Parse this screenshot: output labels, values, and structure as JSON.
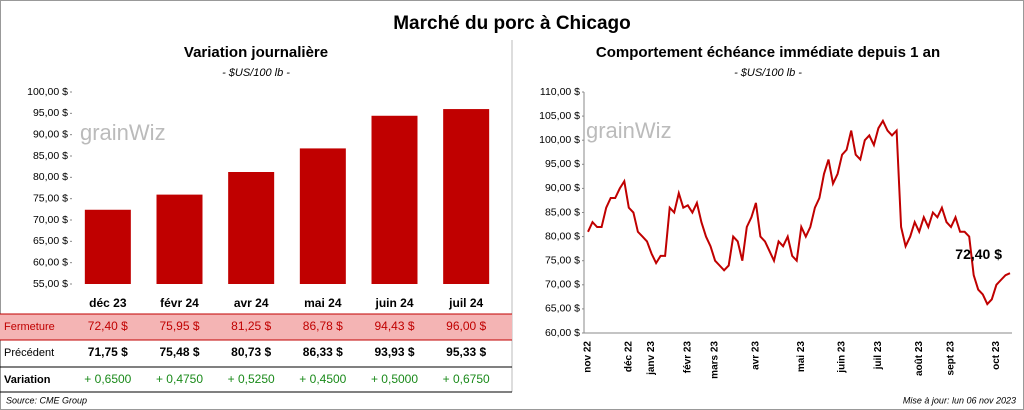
{
  "title": "Marché du porc à Chicago",
  "watermark": "grainWiz",
  "chart_data": [
    {
      "type": "bar",
      "title": "Variation journalière",
      "subtitle": "- $US/100 lb -",
      "categories": [
        "déc 23",
        "févr 24",
        "avr 24",
        "mai 24",
        "juin 24",
        "juil 24"
      ],
      "values": [
        72.4,
        75.95,
        81.25,
        86.78,
        94.43,
        96.0
      ],
      "color": "#c00000",
      "ylim": [
        55,
        100
      ],
      "yticks": [
        {
          "value": 55,
          "label": "55,00 $"
        },
        {
          "value": 60,
          "label": "60,00 $"
        },
        {
          "value": 65,
          "label": "65,00 $"
        },
        {
          "value": 70,
          "label": "70,00 $"
        },
        {
          "value": 75,
          "label": "75,00 $"
        },
        {
          "value": 80,
          "label": "80,00 $"
        },
        {
          "value": 85,
          "label": "85,00 $"
        },
        {
          "value": 90,
          "label": "90,00 $"
        },
        {
          "value": 95,
          "label": "95,00 $"
        },
        {
          "value": 100,
          "label": "100,00 $"
        }
      ]
    },
    {
      "type": "line",
      "title": "Comportement échéance immédiate depuis 1 an",
      "subtitle": "- $US/100 lb -",
      "categories": [
        "nov 22",
        null,
        null,
        null,
        null,
        null,
        null,
        null,
        null,
        "déc 22",
        null,
        null,
        null,
        null,
        "janv 23",
        null,
        null,
        null,
        null,
        null,
        null,
        null,
        "févr 23",
        null,
        null,
        null,
        null,
        null,
        "mars 23",
        null,
        null,
        null,
        null,
        null,
        null,
        null,
        null,
        "avr 23",
        null,
        null,
        null,
        null,
        null,
        null,
        null,
        null,
        null,
        "mai 23",
        null,
        null,
        null,
        null,
        null,
        null,
        null,
        null,
        "juin 23",
        null,
        null,
        null,
        null,
        null,
        null,
        null,
        "juil 23",
        null,
        null,
        null,
        null,
        null,
        null,
        null,
        null,
        "août 23",
        null,
        null,
        null,
        null,
        null,
        null,
        "sept 23",
        null,
        null,
        null,
        null,
        null,
        null,
        null,
        null,
        null,
        "oct 23",
        null,
        null,
        null
      ],
      "values": [
        81,
        83,
        82,
        82,
        86,
        88,
        88,
        90,
        91.5,
        86,
        85,
        81,
        80,
        79,
        76.5,
        74.5,
        76,
        76,
        86,
        85,
        89,
        86,
        86.5,
        85,
        87,
        83,
        80,
        78,
        75,
        74,
        73,
        74,
        80,
        79,
        75,
        82,
        84,
        87,
        80,
        79,
        77,
        75,
        79,
        78,
        80,
        76,
        75,
        82,
        80,
        82,
        86,
        88,
        93,
        96,
        91,
        93,
        97,
        98,
        102,
        97,
        96,
        100,
        101,
        99,
        102.5,
        104,
        102,
        101,
        102,
        82,
        78,
        80,
        83,
        81,
        84,
        82,
        85,
        84,
        86,
        83,
        82,
        84,
        81,
        81,
        80,
        72,
        69,
        68,
        66,
        67,
        70,
        71,
        72,
        72.4
      ],
      "color": "#c00000",
      "annotation": "72,40 $",
      "ylim": [
        60,
        110
      ],
      "yticks": [
        {
          "value": 60,
          "label": "60,00 $"
        },
        {
          "value": 65,
          "label": "65,00 $"
        },
        {
          "value": 70,
          "label": "70,00 $"
        },
        {
          "value": 75,
          "label": "75,00 $"
        },
        {
          "value": 80,
          "label": "80,00 $"
        },
        {
          "value": 85,
          "label": "85,00 $"
        },
        {
          "value": 90,
          "label": "90,00 $"
        },
        {
          "value": 95,
          "label": "95,00 $"
        },
        {
          "value": 100,
          "label": "100,00 $"
        },
        {
          "value": 105,
          "label": "105,00 $"
        },
        {
          "value": 110,
          "label": "110,00 $"
        }
      ]
    }
  ],
  "table": {
    "rows": [
      {
        "label": "Fermeture",
        "cells": [
          "72,40  $",
          "75,95  $",
          "81,25  $",
          "86,78  $",
          "94,43  $",
          "96,00  $"
        ]
      },
      {
        "label": "Précédent",
        "cells": [
          "71,75  $",
          "75,48  $",
          "80,73  $",
          "86,33  $",
          "93,93  $",
          "95,33  $"
        ]
      },
      {
        "label": "Variation",
        "cells": [
          "+ 0,6500",
          "+ 0,4750",
          "+ 0,5250",
          "+ 0,4500",
          "+ 0,5000",
          "+ 0,6750"
        ]
      }
    ]
  },
  "footer": {
    "source": "Source: CME Group",
    "updated": "Mise à jour: lun 06 nov 2023"
  }
}
